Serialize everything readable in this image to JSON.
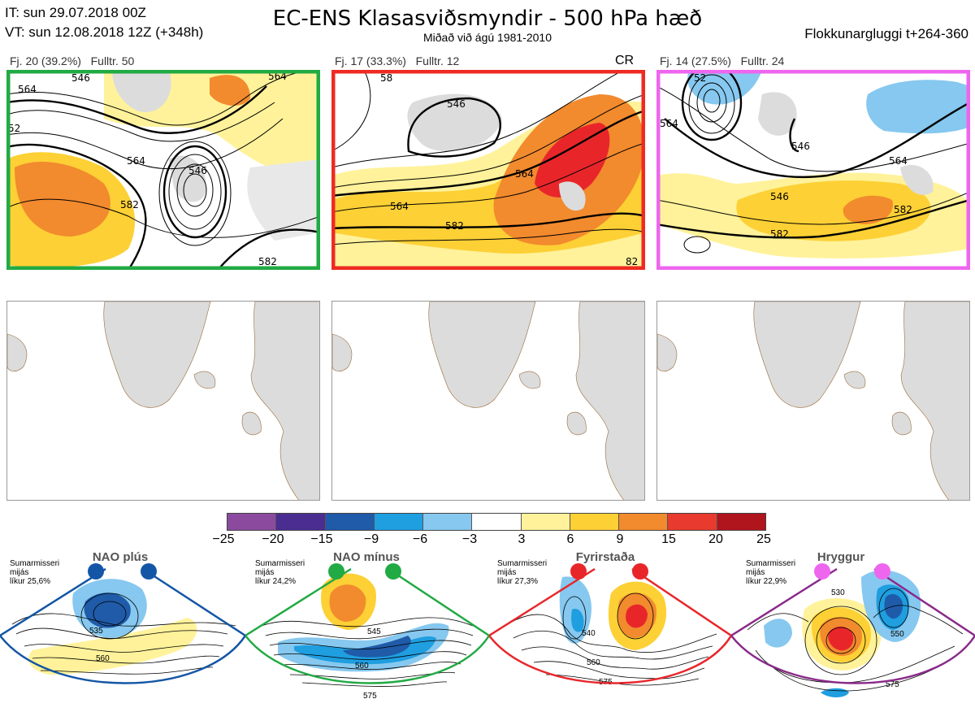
{
  "header": {
    "it_line": "IT: sun 29.07.2018 00Z",
    "vt_line": "VT: sun 12.08.2018 12Z  (+348h)",
    "title": "EC-ENS Klasasviðsmyndir - 500 hPa hæð",
    "subtitle": "Miðað við ágú 1981-2010",
    "window": "Flokkunargluggi t+264-360"
  },
  "clusters": [
    {
      "label": "Fj. 20 (39.2%)",
      "control": "Fulltr. 50",
      "extra": "",
      "frame_color": "#22aa44",
      "contour_labels": [
        "564",
        "546",
        "564",
        "582",
        "582",
        "564",
        "546",
        "52"
      ]
    },
    {
      "label": "Fj. 17 (33.3%)",
      "control": "Fulltr. 12",
      "extra": "CR",
      "frame_color": "#ee2a22",
      "contour_labels": [
        "546",
        "564",
        "564",
        "582",
        "58",
        "82"
      ]
    },
    {
      "label": "Fj. 14 (27.5%)",
      "control": "Fulltr. 24",
      "extra": "",
      "frame_color": "#ee66ee",
      "contour_labels": [
        "52",
        "564",
        "546",
        "564",
        "546",
        "582",
        "582"
      ]
    }
  ],
  "colorbar": {
    "colors": [
      "#8b4a9e",
      "#4b2d92",
      "#1f5ba8",
      "#1f9ee0",
      "#86c8ef",
      "#ffffff",
      "#fff29a",
      "#fdd035",
      "#f28a2e",
      "#e83a2e",
      "#b0141c"
    ],
    "ticks": [
      "−25",
      "−20",
      "−15",
      "−9",
      "−6",
      "−3",
      "3",
      "6",
      "9",
      "15",
      "20",
      "25"
    ]
  },
  "regimes": [
    {
      "name": "NAO plús",
      "season": "Sumarmisseri",
      "metric": "mijás",
      "likelihood": "líkur 25,6%",
      "color": "#1456a6",
      "labels": [
        "535",
        "560"
      ]
    },
    {
      "name": "NAO mínus",
      "season": "Sumarmisseri",
      "metric": "mijás",
      "likelihood": "líkur 24,2%",
      "color": "#22aa44",
      "labels": [
        "545",
        "560",
        "575"
      ]
    },
    {
      "name": "Fyrirstaða",
      "season": "Sumarmisseri",
      "metric": "mijás",
      "likelihood": "líkur 27,3%",
      "color": "#e8262a",
      "labels": [
        "540",
        "560",
        "575"
      ]
    },
    {
      "name": "Hryggur",
      "season": "Sumarmisseri",
      "metric": "mijás",
      "likelihood": "líkur 22,9%",
      "color": "#ee66ee",
      "labels": [
        "530",
        "550",
        "575"
      ]
    }
  ]
}
